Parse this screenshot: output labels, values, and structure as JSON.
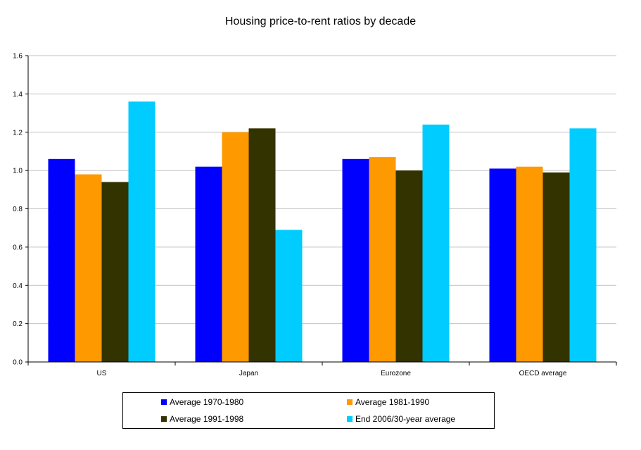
{
  "chart_data": {
    "type": "bar",
    "title": "Housing price-to-rent ratios by decade",
    "xlabel": "",
    "ylabel": "",
    "categories": [
      "US",
      "Japan",
      "Eurozone",
      "OECD average"
    ],
    "ylim": [
      0,
      1.6
    ],
    "yticks": [
      "0.0",
      "0.2",
      "0.4",
      "0.6",
      "0.8",
      "1.0",
      "1.2",
      "1.4",
      "1.6"
    ],
    "grid": true,
    "legend_position": "bottom",
    "series": [
      {
        "name": "Average 1970-1980",
        "color": "#0000ff",
        "values": [
          1.06,
          1.02,
          1.06,
          1.01
        ]
      },
      {
        "name": "Average 1981-1990",
        "color": "#ff9900",
        "values": [
          0.98,
          1.2,
          1.07,
          1.02
        ]
      },
      {
        "name": "Average 1991-1998",
        "color": "#333300",
        "values": [
          0.94,
          1.22,
          1.0,
          0.99
        ]
      },
      {
        "name": "End 2006/30-year average",
        "color": "#00ccff",
        "values": [
          1.36,
          0.69,
          1.24,
          1.22
        ]
      }
    ]
  }
}
